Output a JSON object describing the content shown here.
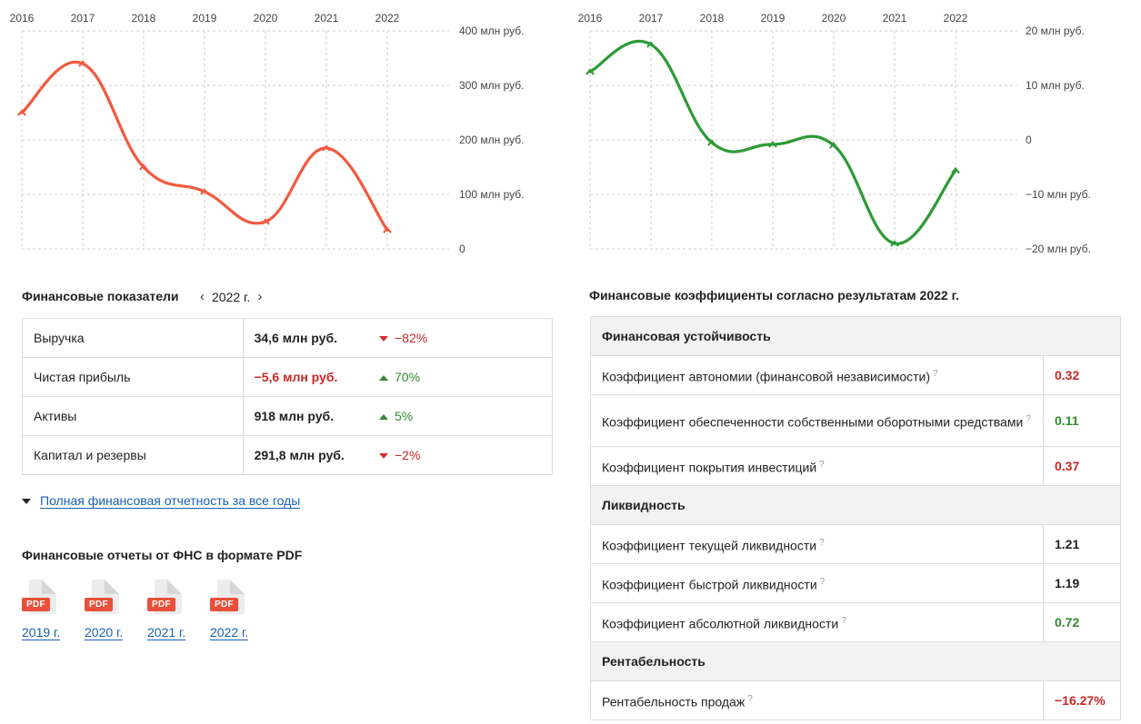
{
  "revenue_chart": {
    "years": [
      "2016",
      "2017",
      "2018",
      "2019",
      "2020",
      "2021",
      "2022"
    ],
    "y_labels": [
      "400 млн руб.",
      "300 млн руб.",
      "200 млн руб.",
      "100 млн руб.",
      "0"
    ],
    "color": "#f15a40"
  },
  "profit_chart": {
    "years": [
      "2016",
      "2017",
      "2018",
      "2019",
      "2020",
      "2021",
      "2022"
    ],
    "y_labels": [
      "20 млн руб.",
      "10 млн руб.",
      "0",
      "−10 млн руб.",
      "−20 млн руб."
    ],
    "color": "#2e9a36"
  },
  "chart_data": [
    {
      "type": "line",
      "x": [
        "2016",
        "2017",
        "2018",
        "2019",
        "2020",
        "2021",
        "2022"
      ],
      "values": [
        250,
        340,
        150,
        105,
        50,
        185,
        34.6
      ],
      "ylim": [
        0,
        400
      ],
      "ytick_labels": [
        "400 млн руб.",
        "300 млн руб.",
        "200 млн руб.",
        "100 млн руб.",
        "0"
      ],
      "grid": true
    },
    {
      "type": "line",
      "x": [
        "2016",
        "2017",
        "2018",
        "2019",
        "2020",
        "2021",
        "2022"
      ],
      "values": [
        12.5,
        17.5,
        -0.5,
        -0.8,
        -1.0,
        -19.0,
        -5.6
      ],
      "ylim": [
        -20,
        20
      ],
      "ytick_labels": [
        "20 млн руб.",
        "10 млн руб.",
        "0",
        "−10 млн руб.",
        "−20 млн руб."
      ],
      "grid": true
    }
  ],
  "fin": {
    "title": "Финансовые показатели",
    "year": "2022 г.",
    "rows": [
      {
        "label": "Выручка",
        "value": "34,6 млн руб.",
        "change": "−82%",
        "dir": "down",
        "neg": false
      },
      {
        "label": "Чистая прибыль",
        "value": "−5,6 млн руб.",
        "change": "70%",
        "dir": "up",
        "neg": true
      },
      {
        "label": "Активы",
        "value": "918 млн руб.",
        "change": "5%",
        "dir": "up",
        "neg": false
      },
      {
        "label": "Капитал и резервы",
        "value": "291,8 млн руб.",
        "change": "−2%",
        "dir": "down",
        "neg": false
      }
    ],
    "full_link": "Полная финансовая отчетность за все годы"
  },
  "pdf": {
    "title": "Финансовые отчеты от ФНС в формате PDF",
    "badge": "PDF",
    "years": [
      "2019 г.",
      "2020 г.",
      "2021 г.",
      "2022 г."
    ]
  },
  "coef": {
    "title": "Финансовые коэффициенты согласно результатам 2022 г.",
    "help": "?",
    "groups": [
      {
        "name": "Финансовая устойчивость",
        "items": [
          {
            "name": "Коэффициент автономии (финансовой независимости)",
            "value": "0.32",
            "color": "red"
          },
          {
            "name": "Коэффициент обеспеченности собственными оборотными средствами",
            "value": "0.11",
            "color": "green"
          },
          {
            "name": "Коэффициент покрытия инвестиций",
            "value": "0.37",
            "color": "red"
          }
        ]
      },
      {
        "name": "Ликвидность",
        "items": [
          {
            "name": "Коэффициент текущей ликвидности",
            "value": "1.21",
            "color": "black"
          },
          {
            "name": "Коэффициент быстрой ликвидности",
            "value": "1.19",
            "color": "black"
          },
          {
            "name": "Коэффициент абсолютной ликвидности",
            "value": "0.72",
            "color": "green"
          }
        ]
      },
      {
        "name": "Рентабельность",
        "items": [
          {
            "name": "Рентабельность продаж",
            "value": "−16.27%",
            "color": "red"
          }
        ]
      }
    ]
  }
}
